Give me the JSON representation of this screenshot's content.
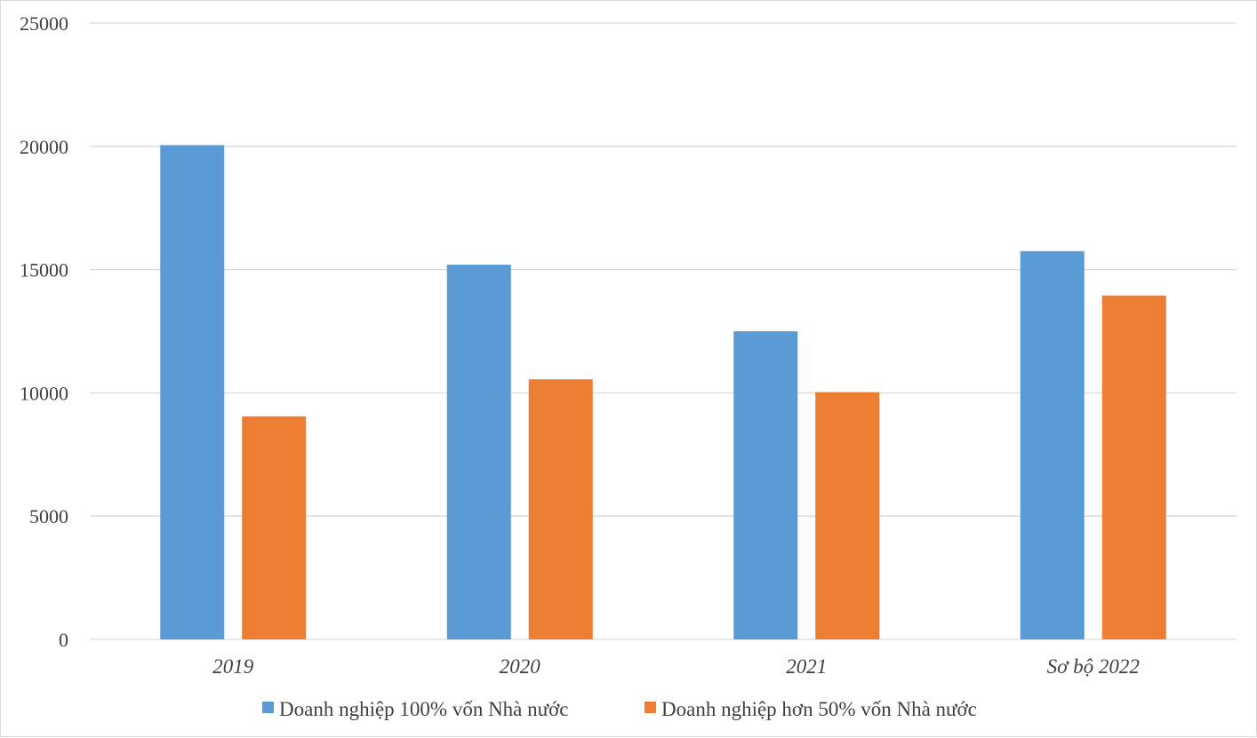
{
  "chart_data": {
    "type": "bar",
    "categories": [
      "2019",
      "2020",
      "2021",
      "Sơ bộ 2022"
    ],
    "series": [
      {
        "name": "Doanh nghiệp 100% vốn Nhà nước",
        "color": "#5b9bd5",
        "values": [
          20050,
          15200,
          12500,
          15750
        ]
      },
      {
        "name": "Doanh nghiệp hơn 50% vốn Nhà nước",
        "color": "#ed7d31",
        "values": [
          9050,
          10550,
          10030,
          13950
        ]
      }
    ],
    "ylim": [
      0,
      25000
    ],
    "yticks": [
      0,
      5000,
      10000,
      15000,
      20000,
      25000
    ],
    "grid": true,
    "legend_position": "bottom",
    "gridline_color": "#d9d9d9"
  }
}
